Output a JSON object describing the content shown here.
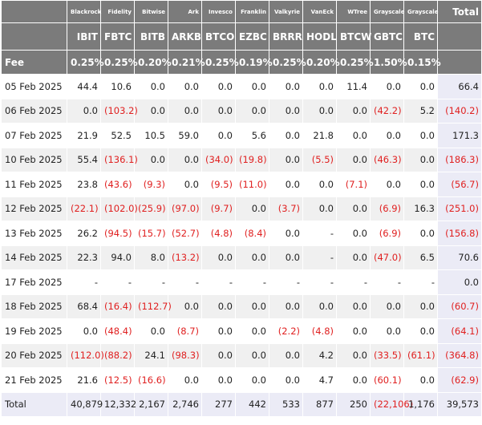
{
  "fee_label": "Fee",
  "total_label": "Total",
  "funds": [
    {
      "issuer": "Blackrock",
      "ticker": "IBIT",
      "fee": "0.25%"
    },
    {
      "issuer": "Fidelity",
      "ticker": "FBTC",
      "fee": "0.25%"
    },
    {
      "issuer": "Bitwise",
      "ticker": "BITB",
      "fee": "0.20%"
    },
    {
      "issuer": "Ark",
      "ticker": "ARKB",
      "fee": "0.21%"
    },
    {
      "issuer": "Invesco",
      "ticker": "BTCO",
      "fee": "0.25%"
    },
    {
      "issuer": "Franklin",
      "ticker": "EZBC",
      "fee": "0.19%"
    },
    {
      "issuer": "Valkyrie",
      "ticker": "BRRR",
      "fee": "0.25%"
    },
    {
      "issuer": "VanEck",
      "ticker": "HODL",
      "fee": "0.20%"
    },
    {
      "issuer": "WTree",
      "ticker": "BTCW",
      "fee": "0.25%"
    },
    {
      "issuer": "Grayscale",
      "ticker": "GBTC",
      "fee": "1.50%"
    },
    {
      "issuer": "Grayscale",
      "ticker": "BTC",
      "fee": "0.15%"
    }
  ],
  "rows": [
    {
      "date": "05 Feb 2025",
      "values": [
        "44.4",
        "10.6",
        "0.0",
        "0.0",
        "0.0",
        "0.0",
        "0.0",
        "0.0",
        "11.4",
        "0.0",
        "0.0"
      ],
      "total": "66.4"
    },
    {
      "date": "06 Feb 2025",
      "values": [
        "0.0",
        "(103.2)",
        "0.0",
        "0.0",
        "0.0",
        "0.0",
        "0.0",
        "0.0",
        "0.0",
        "(42.2)",
        "5.2"
      ],
      "total": "(140.2)"
    },
    {
      "date": "07 Feb 2025",
      "values": [
        "21.9",
        "52.5",
        "10.5",
        "59.0",
        "0.0",
        "5.6",
        "0.0",
        "21.8",
        "0.0",
        "0.0",
        "0.0"
      ],
      "total": "171.3"
    },
    {
      "date": "10 Feb 2025",
      "values": [
        "55.4",
        "(136.1)",
        "0.0",
        "0.0",
        "(34.0)",
        "(19.8)",
        "0.0",
        "(5.5)",
        "0.0",
        "(46.3)",
        "0.0"
      ],
      "total": "(186.3)"
    },
    {
      "date": "11 Feb 2025",
      "values": [
        "23.8",
        "(43.6)",
        "(9.3)",
        "0.0",
        "(9.5)",
        "(11.0)",
        "0.0",
        "0.0",
        "(7.1)",
        "0.0",
        "0.0"
      ],
      "total": "(56.7)"
    },
    {
      "date": "12 Feb 2025",
      "values": [
        "(22.1)",
        "(102.0)",
        "(25.9)",
        "(97.0)",
        "(9.7)",
        "0.0",
        "(3.7)",
        "0.0",
        "0.0",
        "(6.9)",
        "16.3"
      ],
      "total": "(251.0)"
    },
    {
      "date": "13 Feb 2025",
      "values": [
        "26.2",
        "(94.5)",
        "(15.7)",
        "(52.7)",
        "(4.8)",
        "(8.4)",
        "0.0",
        "-",
        "0.0",
        "(6.9)",
        "0.0"
      ],
      "total": "(156.8)"
    },
    {
      "date": "14 Feb 2025",
      "values": [
        "22.3",
        "94.0",
        "8.0",
        "(13.2)",
        "0.0",
        "0.0",
        "0.0",
        "-",
        "0.0",
        "(47.0)",
        "6.5"
      ],
      "total": "70.6"
    },
    {
      "date": "17 Feb 2025",
      "values": [
        "-",
        "-",
        "-",
        "-",
        "-",
        "-",
        "-",
        "-",
        "-",
        "-",
        "-"
      ],
      "total": "0.0"
    },
    {
      "date": "18 Feb 2025",
      "values": [
        "68.4",
        "(16.4)",
        "(112.7)",
        "0.0",
        "0.0",
        "0.0",
        "0.0",
        "0.0",
        "0.0",
        "0.0",
        "0.0"
      ],
      "total": "(60.7)"
    },
    {
      "date": "19 Feb 2025",
      "values": [
        "0.0",
        "(48.4)",
        "0.0",
        "(8.7)",
        "0.0",
        "0.0",
        "(2.2)",
        "(4.8)",
        "0.0",
        "0.0",
        "0.0"
      ],
      "total": "(64.1)"
    },
    {
      "date": "20 Feb 2025",
      "values": [
        "(112.0)",
        "(88.2)",
        "24.1",
        "(98.3)",
        "0.0",
        "0.0",
        "0.0",
        "4.2",
        "0.0",
        "(33.5)",
        "(61.1)"
      ],
      "total": "(364.8)"
    },
    {
      "date": "21 Feb 2025",
      "values": [
        "21.6",
        "(12.5)",
        "(16.6)",
        "0.0",
        "0.0",
        "0.0",
        "0.0",
        "4.7",
        "0.0",
        "(60.1)",
        "0.0"
      ],
      "total": "(62.9)"
    }
  ],
  "totals": {
    "label": "Total",
    "values": [
      "40,879",
      "12,332",
      "2,167",
      "2,746",
      "277",
      "442",
      "533",
      "877",
      "250",
      "(22,106)",
      "1,176"
    ],
    "total": "39,573"
  }
}
